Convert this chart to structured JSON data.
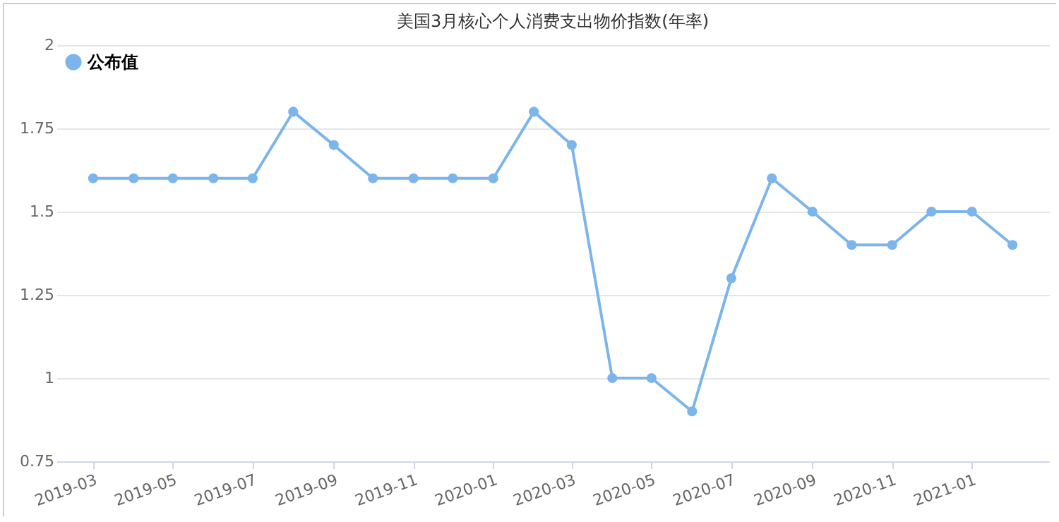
{
  "chart_data": {
    "type": "line",
    "title": "美国3月核心个人消费支出物价指数(年率)",
    "x": [
      "2019-03",
      "2019-04",
      "2019-05",
      "2019-06",
      "2019-07",
      "2019-08",
      "2019-09",
      "2019-10",
      "2019-11",
      "2019-12",
      "2020-01",
      "2020-02",
      "2020-03",
      "2020-04",
      "2020-05",
      "2020-06",
      "2020-07",
      "2020-08",
      "2020-09",
      "2020-10",
      "2020-11",
      "2020-12",
      "2021-01",
      "2021-02"
    ],
    "series": [
      {
        "name": "公布值",
        "color": "#7cb5ec",
        "values": [
          1.6,
          1.6,
          1.6,
          1.6,
          1.6,
          1.8,
          1.7,
          1.6,
          1.6,
          1.6,
          1.6,
          1.8,
          1.7,
          1.0,
          1.0,
          0.9,
          1.3,
          1.6,
          1.5,
          1.4,
          1.4,
          1.5,
          1.5,
          1.4
        ]
      }
    ],
    "xlim": [
      "2019-02",
      "2021-03"
    ],
    "xticks": [
      "2019-03",
      "2019-05",
      "2019-07",
      "2019-09",
      "2019-11",
      "2020-01",
      "2020-03",
      "2020-05",
      "2020-07",
      "2020-09",
      "2020-11",
      "2021-01"
    ],
    "ylim": [
      0.75,
      2
    ],
    "yticks": [
      0.75,
      1,
      1.25,
      1.5,
      1.75,
      2
    ],
    "grid": "y",
    "legend": "top left",
    "marker": "circle",
    "line_style": "solid"
  }
}
